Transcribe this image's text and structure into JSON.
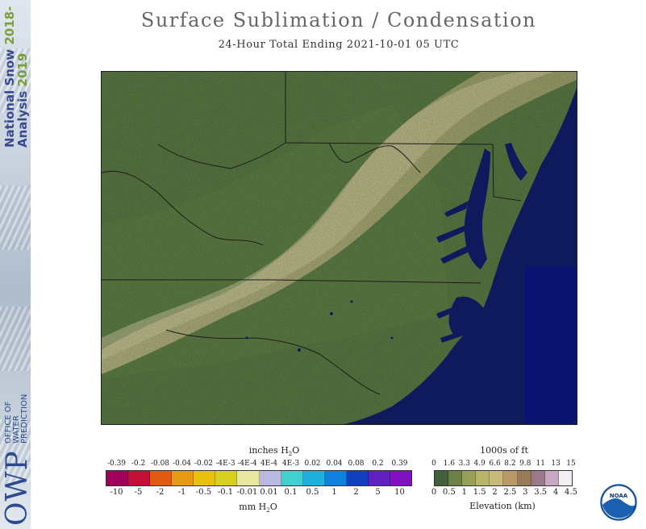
{
  "brand": {
    "line1_text": "National Snow ",
    "line1_year": "2018-",
    "line2_text": "Analysis ",
    "line2_year": "2019",
    "owp": "OWP",
    "owp_sub": [
      "OFFICE OF",
      "WATER",
      "PREDICTION"
    ]
  },
  "title": "Surface Sublimation / Condensation",
  "subtitle": "24-Hour Total Ending 2021-10-01 05 UTC",
  "map": {
    "region": "Mid-Atlantic / Southeast US",
    "colors": {
      "land": "#5e7f46",
      "mountain_high": "#cfc791",
      "water": "#0e1a5c",
      "ocean_block": "#0a1470",
      "borders": "#1c1c1c"
    }
  },
  "legend_water": {
    "top_label": "inches H",
    "top_label_sub": "2",
    "top_label_tail": "O",
    "top_ticks": [
      "-0.39",
      "-0.2",
      "-0.08",
      "-0.04",
      "-0.02",
      "-4E-3",
      "-4E-4",
      "4E-4",
      "4E-3",
      "0.02",
      "0.04",
      "0.08",
      "0.2",
      "0.39"
    ],
    "bottom_ticks": [
      "-10",
      "-5",
      "-2",
      "-1",
      "-0.5",
      "-0.1",
      "-0.01",
      "0.01",
      "0.1",
      "0.5",
      "1",
      "2",
      "5",
      "10"
    ],
    "bottom_label": "mm H",
    "bottom_label_sub": "2",
    "bottom_label_tail": "O",
    "colors": [
      "#a0005a",
      "#c0103a",
      "#e05a10",
      "#e89a10",
      "#e8c010",
      "#d8d020",
      "#e8e8a0",
      "#b8b8e0",
      "#40d0d0",
      "#20b0e0",
      "#1080e0",
      "#1040c0",
      "#6020c0",
      "#8010c0"
    ]
  },
  "legend_elev": {
    "top_label": "1000s of ft",
    "top_ticks": [
      "0",
      "1.6",
      "3.3",
      "4.9",
      "6.6",
      "8.2",
      "9.8",
      "11",
      "13",
      "15"
    ],
    "bottom_ticks": [
      "0",
      "0.5",
      "1",
      "1.5",
      "2",
      "2.5",
      "3",
      "3.5",
      "4",
      "4.5"
    ],
    "bottom_label": "Elevation (km)",
    "colors": [
      "#44603a",
      "#6c8148",
      "#97a05a",
      "#b8b46a",
      "#c8b87a",
      "#b89a6a",
      "#9a7a5a",
      "#9a7a8a",
      "#c8a8c0",
      "#f0f0f0"
    ]
  },
  "noaa_logo": "NOAA"
}
